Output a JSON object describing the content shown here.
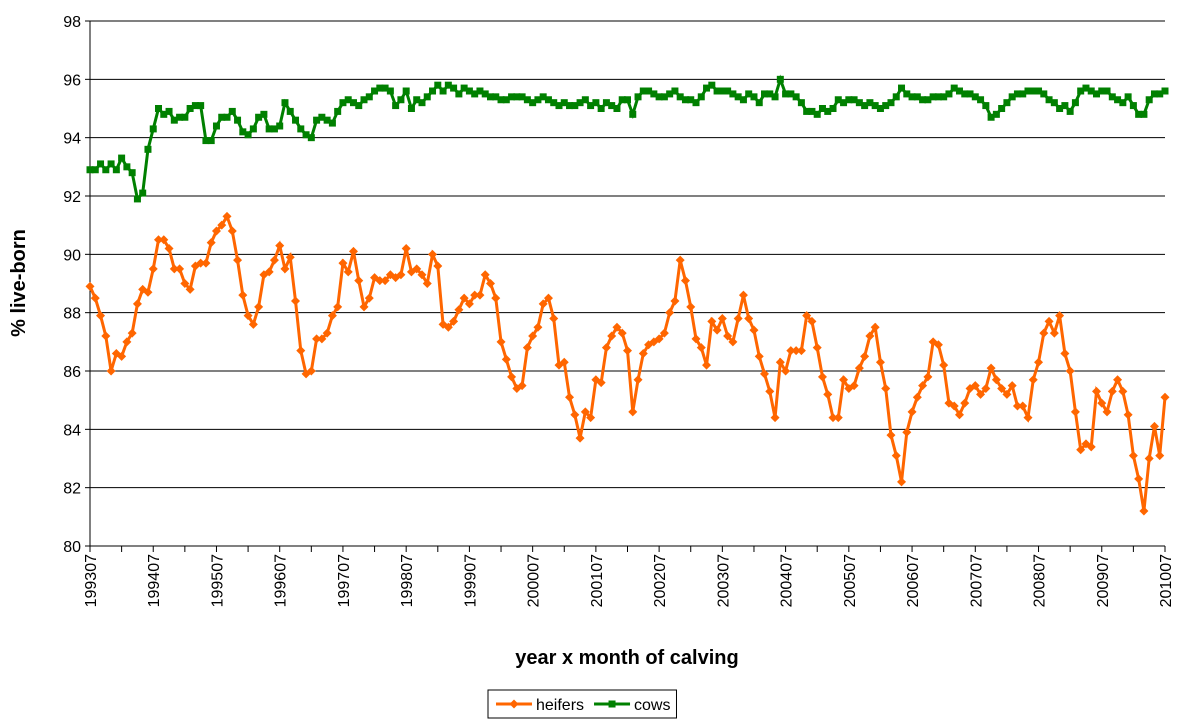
{
  "chart_data": {
    "type": "line",
    "x_label": "year x month of calving",
    "y_label": "% live-born",
    "categories": [
      "199307",
      null,
      null,
      null,
      null,
      null,
      null,
      null,
      null,
      null,
      null,
      null,
      "199407",
      null,
      null,
      null,
      null,
      null,
      null,
      null,
      null,
      null,
      null,
      null,
      "199507",
      null,
      null,
      null,
      null,
      null,
      null,
      null,
      null,
      null,
      null,
      null,
      "199607",
      null,
      null,
      null,
      null,
      null,
      null,
      null,
      null,
      null,
      null,
      null,
      "199707",
      null,
      null,
      null,
      null,
      null,
      null,
      null,
      null,
      null,
      null,
      null,
      "199807",
      null,
      null,
      null,
      null,
      null,
      null,
      null,
      null,
      null,
      null,
      null,
      "199907",
      null,
      null,
      null,
      null,
      null,
      null,
      null,
      null,
      null,
      null,
      null,
      "200007",
      null,
      null,
      null,
      null,
      null,
      null,
      null,
      null,
      null,
      null,
      null,
      "200107",
      null,
      null,
      null,
      null,
      null,
      null,
      null,
      null,
      null,
      null,
      null,
      "200207",
      null,
      null,
      null,
      null,
      null,
      null,
      null,
      null,
      null,
      null,
      null,
      "200307",
      null,
      null,
      null,
      null,
      null,
      null,
      null,
      null,
      null,
      null,
      null,
      "200407",
      null,
      null,
      null,
      null,
      null,
      null,
      null,
      null,
      null,
      null,
      null,
      "200507",
      null,
      null,
      null,
      null,
      null,
      null,
      null,
      null,
      null,
      null,
      null,
      "200607",
      null,
      null,
      null,
      null,
      null,
      null,
      null,
      null,
      null,
      null,
      null,
      "200707",
      null,
      null,
      null,
      null,
      null,
      null,
      null,
      null,
      null,
      null,
      null,
      "200807",
      null,
      null,
      null,
      null,
      null,
      null,
      null,
      null,
      null,
      null,
      null,
      "200907",
      null,
      null,
      null,
      null,
      null,
      null,
      null,
      null,
      null,
      null,
      null,
      "201007"
    ],
    "series": [
      {
        "name": "heifers",
        "color": "#ff6600",
        "marker": "diamond",
        "values": [
          88.9,
          88.5,
          87.9,
          87.2,
          86.0,
          86.6,
          86.5,
          87.0,
          87.3,
          88.3,
          88.8,
          88.7,
          89.5,
          90.5,
          90.5,
          90.2,
          89.5,
          89.5,
          89.0,
          88.8,
          89.6,
          89.7,
          89.7,
          90.4,
          90.8,
          91.0,
          91.3,
          90.8,
          89.8,
          88.6,
          87.9,
          87.6,
          88.2,
          89.3,
          89.4,
          89.8,
          90.3,
          89.5,
          89.9,
          88.4,
          86.7,
          85.9,
          86.0,
          87.1,
          87.1,
          87.3,
          87.9,
          88.2,
          89.7,
          89.4,
          90.1,
          89.1,
          88.2,
          88.5,
          89.2,
          89.1,
          89.1,
          89.3,
          89.2,
          89.3,
          90.2,
          89.4,
          89.5,
          89.3,
          89.0,
          90.0,
          89.6,
          87.6,
          87.5,
          87.7,
          88.1,
          88.5,
          88.3,
          88.6,
          88.6,
          89.3,
          89.0,
          88.5,
          87.0,
          86.4,
          85.8,
          85.4,
          85.5,
          86.8,
          87.2,
          87.5,
          88.3,
          88.5,
          87.8,
          86.2,
          86.3,
          85.1,
          84.5,
          83.7,
          84.6,
          84.4,
          85.7,
          85.6,
          86.8,
          87.2,
          87.5,
          87.3,
          86.7,
          84.6,
          85.7,
          86.6,
          86.9,
          87.0,
          87.1,
          87.3,
          88.0,
          88.4,
          89.8,
          89.1,
          88.2,
          87.1,
          86.8,
          86.2,
          87.7,
          87.4,
          87.8,
          87.2,
          87.0,
          87.8,
          88.6,
          87.8,
          87.4,
          86.5,
          85.9,
          85.3,
          84.4,
          86.3,
          86.0,
          86.7,
          86.7,
          86.7,
          87.9,
          87.7,
          86.8,
          85.8,
          85.2,
          84.4,
          84.4,
          85.7,
          85.4,
          85.5,
          86.1,
          86.5,
          87.2,
          87.5,
          86.3,
          85.4,
          83.8,
          83.1,
          82.2,
          83.9,
          84.6,
          85.1,
          85.5,
          85.8,
          87.0,
          86.9,
          86.2,
          84.9,
          84.8,
          84.5,
          84.9,
          85.4,
          85.5,
          85.2,
          85.4,
          86.1,
          85.7,
          85.4,
          85.2,
          85.5,
          84.8,
          84.8,
          84.4,
          85.7,
          86.3,
          87.3,
          87.7,
          87.3,
          87.9,
          86.6,
          86.0,
          84.6,
          83.3,
          83.5,
          83.4,
          85.3,
          84.9,
          84.6,
          85.3,
          85.7,
          85.3,
          84.5,
          83.1,
          82.3,
          81.2,
          83.0,
          84.1,
          83.1,
          85.1
        ]
      },
      {
        "name": "cows",
        "color": "#008000",
        "marker": "square",
        "values": [
          92.9,
          92.9,
          93.1,
          92.9,
          93.1,
          92.9,
          93.3,
          93.0,
          92.8,
          91.9,
          92.1,
          93.6,
          94.3,
          95.0,
          94.8,
          94.9,
          94.6,
          94.7,
          94.7,
          95.0,
          95.1,
          95.1,
          93.9,
          93.9,
          94.4,
          94.7,
          94.7,
          94.9,
          94.6,
          94.2,
          94.1,
          94.3,
          94.7,
          94.8,
          94.3,
          94.3,
          94.4,
          95.2,
          94.9,
          94.6,
          94.3,
          94.1,
          94.0,
          94.6,
          94.7,
          94.6,
          94.5,
          94.9,
          95.2,
          95.3,
          95.2,
          95.1,
          95.3,
          95.4,
          95.6,
          95.7,
          95.7,
          95.6,
          95.1,
          95.3,
          95.6,
          95.0,
          95.3,
          95.2,
          95.4,
          95.6,
          95.8,
          95.6,
          95.8,
          95.7,
          95.5,
          95.7,
          95.6,
          95.5,
          95.6,
          95.5,
          95.4,
          95.4,
          95.3,
          95.3,
          95.4,
          95.4,
          95.4,
          95.3,
          95.2,
          95.3,
          95.4,
          95.3,
          95.2,
          95.1,
          95.2,
          95.1,
          95.1,
          95.2,
          95.3,
          95.1,
          95.2,
          95.0,
          95.2,
          95.1,
          95.0,
          95.3,
          95.3,
          94.8,
          95.4,
          95.6,
          95.6,
          95.5,
          95.4,
          95.4,
          95.5,
          95.6,
          95.4,
          95.3,
          95.3,
          95.2,
          95.4,
          95.7,
          95.8,
          95.6,
          95.6,
          95.6,
          95.5,
          95.4,
          95.3,
          95.5,
          95.4,
          95.2,
          95.5,
          95.5,
          95.4,
          96.0,
          95.5,
          95.5,
          95.4,
          95.2,
          94.9,
          94.9,
          94.8,
          95.0,
          94.9,
          95.0,
          95.3,
          95.2,
          95.3,
          95.3,
          95.2,
          95.1,
          95.2,
          95.1,
          95.0,
          95.1,
          95.2,
          95.4,
          95.7,
          95.5,
          95.4,
          95.4,
          95.3,
          95.3,
          95.4,
          95.4,
          95.4,
          95.5,
          95.7,
          95.6,
          95.5,
          95.5,
          95.4,
          95.3,
          95.1,
          94.7,
          94.8,
          95.0,
          95.2,
          95.4,
          95.5,
          95.5,
          95.6,
          95.6,
          95.6,
          95.5,
          95.3,
          95.2,
          95.0,
          95.1,
          94.9,
          95.2,
          95.6,
          95.7,
          95.6,
          95.5,
          95.6,
          95.6,
          95.4,
          95.3,
          95.2,
          95.4,
          95.1,
          94.8,
          94.8,
          95.3,
          95.5,
          95.5,
          95.6
        ]
      }
    ],
    "ylim": [
      80,
      98
    ],
    "yticks": [
      80,
      82,
      84,
      86,
      88,
      90,
      92,
      94,
      96,
      98
    ],
    "grid": true,
    "legend": "bottom"
  }
}
